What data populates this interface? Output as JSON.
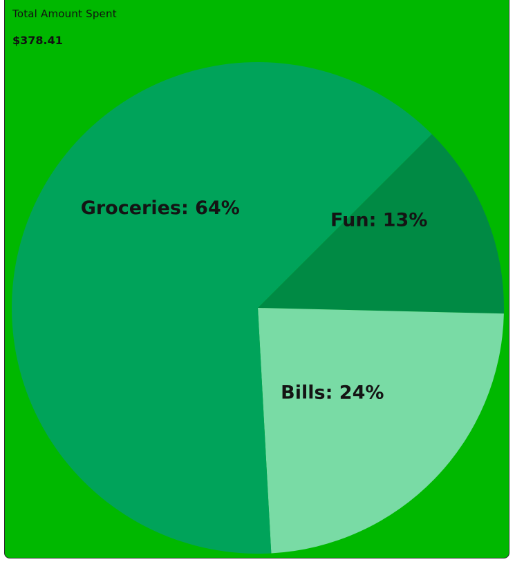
{
  "summary": {
    "label": "Total Amount Spent",
    "value": "$378.41"
  },
  "chart_data": {
    "type": "pie",
    "title": "",
    "slices": [
      {
        "name": "Fun",
        "value": 13,
        "label": "Fun: 13%",
        "color": "#008a44"
      },
      {
        "name": "Bills",
        "value": 24,
        "label": "Bills: 24%",
        "color": "#79dba5"
      },
      {
        "name": "Groceries",
        "value": 64,
        "label": "Groceries: 64%",
        "color": "#00a35a"
      }
    ],
    "start_angle_deg": -45,
    "direction": "clockwise"
  },
  "colors": {
    "background": "#00b800",
    "text": "#141414"
  }
}
